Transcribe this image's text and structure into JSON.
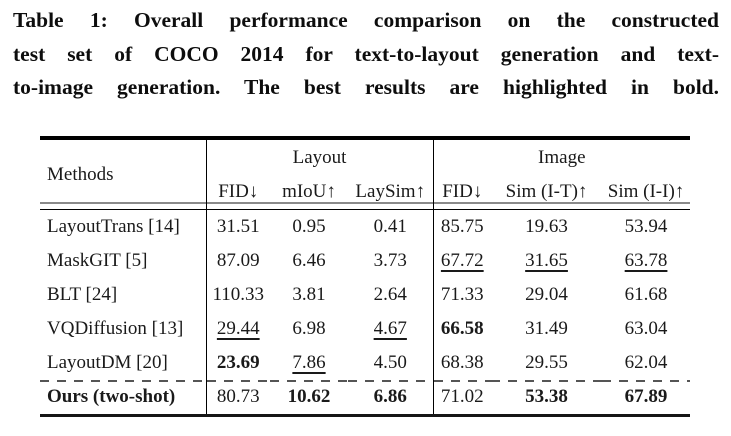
{
  "caption": {
    "lines": [
      "Table 1: Overall performance comparison on the constructed",
      "test set of COCO 2014 for text-to-layout generation and text-",
      "to-image generation. The best results are highlighted in bold."
    ]
  },
  "table": {
    "methods_header": "Methods",
    "groups": [
      {
        "label": "Layout",
        "sub": [
          "FID↓",
          "mIoU↑",
          "LaySim↑"
        ]
      },
      {
        "label": "Image",
        "sub": [
          "FID↓",
          "Sim (I-T)↑",
          "Sim (I-I)↑"
        ]
      }
    ],
    "rows": [
      {
        "method": "LayoutTrans [14]",
        "method_bold": false,
        "dashed_top": false,
        "values": [
          {
            "v": "31.51",
            "s": "n"
          },
          {
            "v": "0.95",
            "s": "n"
          },
          {
            "v": "0.41",
            "s": "n"
          },
          {
            "v": "85.75",
            "s": "n"
          },
          {
            "v": "19.63",
            "s": "n"
          },
          {
            "v": "53.94",
            "s": "n"
          }
        ]
      },
      {
        "method": "MaskGIT [5]",
        "method_bold": false,
        "dashed_top": false,
        "values": [
          {
            "v": "87.09",
            "s": "n"
          },
          {
            "v": "6.46",
            "s": "n"
          },
          {
            "v": "3.73",
            "s": "n"
          },
          {
            "v": "67.72",
            "s": "u"
          },
          {
            "v": "31.65",
            "s": "u"
          },
          {
            "v": "63.78",
            "s": "u"
          }
        ]
      },
      {
        "method": "BLT [24]",
        "method_bold": false,
        "dashed_top": false,
        "values": [
          {
            "v": "110.33",
            "s": "n"
          },
          {
            "v": "3.81",
            "s": "n"
          },
          {
            "v": "2.64",
            "s": "n"
          },
          {
            "v": "71.33",
            "s": "n"
          },
          {
            "v": "29.04",
            "s": "n"
          },
          {
            "v": "61.68",
            "s": "n"
          }
        ]
      },
      {
        "method": "VQDiffusion [13]",
        "method_bold": false,
        "dashed_top": false,
        "values": [
          {
            "v": "29.44",
            "s": "u"
          },
          {
            "v": "6.98",
            "s": "n"
          },
          {
            "v": "4.67",
            "s": "u"
          },
          {
            "v": "66.58",
            "s": "b"
          },
          {
            "v": "31.49",
            "s": "n"
          },
          {
            "v": "63.04",
            "s": "n"
          }
        ]
      },
      {
        "method": "LayoutDM [20]",
        "method_bold": false,
        "dashed_top": false,
        "values": [
          {
            "v": "23.69",
            "s": "b"
          },
          {
            "v": "7.86",
            "s": "u"
          },
          {
            "v": "4.50",
            "s": "n"
          },
          {
            "v": "68.38",
            "s": "n"
          },
          {
            "v": "29.55",
            "s": "n"
          },
          {
            "v": "62.04",
            "s": "n"
          }
        ]
      },
      {
        "method": "Ours (two-shot)",
        "method_bold": true,
        "dashed_top": true,
        "values": [
          {
            "v": "80.73",
            "s": "n"
          },
          {
            "v": "10.62",
            "s": "b"
          },
          {
            "v": "6.86",
            "s": "b"
          },
          {
            "v": "71.02",
            "s": "n"
          },
          {
            "v": "53.38",
            "s": "b"
          },
          {
            "v": "67.89",
            "s": "b"
          }
        ]
      }
    ]
  },
  "colors": {
    "text": "#1a1a1a",
    "rule": "#000000",
    "midrule_gray": "#8a8a8a",
    "dash": "#555555"
  }
}
